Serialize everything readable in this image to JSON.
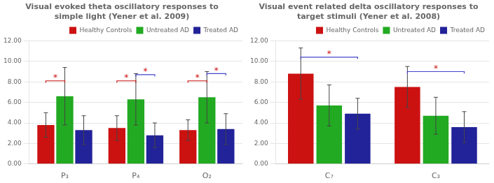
{
  "chart_data": [
    {
      "type": "bar",
      "title": "Visual evoked theta oscillatory responses to\nsimple light (Yener et al. 2009)",
      "categories": [
        "P₃",
        "P₄",
        "O₂"
      ],
      "series": [
        {
          "name": "Healthy Controls",
          "color": "#cc1111",
          "values": [
            3.8,
            3.5,
            3.3
          ],
          "errors": [
            1.2,
            1.2,
            1.0
          ]
        },
        {
          "name": "Untreated AD",
          "color": "#22aa22",
          "values": [
            6.6,
            6.3,
            6.5
          ],
          "errors": [
            2.8,
            2.5,
            2.5
          ]
        },
        {
          "name": "Treated AD",
          "color": "#222299",
          "values": [
            3.3,
            2.8,
            3.4
          ],
          "errors": [
            1.4,
            1.2,
            1.5
          ]
        }
      ],
      "ylim": [
        0,
        12
      ],
      "yticks": [
        {
          "value": 0,
          "label": "0.00"
        },
        {
          "value": 2,
          "label": "2.00"
        },
        {
          "value": 4,
          "label": "4.00"
        },
        {
          "value": 6,
          "label": "6.00"
        },
        {
          "value": 8,
          "label": "8.00"
        },
        {
          "value": 10,
          "label": "10.00"
        },
        {
          "value": 12,
          "label": "12.00"
        }
      ],
      "grid": true,
      "legend": "upper right",
      "annotations": [
        {
          "text": "*",
          "category": "P₃",
          "from": "Healthy Controls",
          "to": "Untreated AD",
          "y": 8.1,
          "color": "#cc1111",
          "text_color": "#cc1111"
        },
        {
          "text": "*",
          "category": "P₄",
          "from": "Healthy Controls",
          "to": "Untreated AD",
          "y": 8.1,
          "color": "#cc1111",
          "text_color": "#cc1111"
        },
        {
          "text": "*",
          "category": "P₄",
          "from": "Untreated AD",
          "to": "Treated AD",
          "y": 8.7,
          "color": "#4444cc",
          "text_color": "#cc1111"
        },
        {
          "text": "*",
          "category": "O₂",
          "from": "Healthy Controls",
          "to": "Untreated AD",
          "y": 8.1,
          "color": "#cc1111",
          "text_color": "#cc1111"
        },
        {
          "text": "*",
          "category": "O₂",
          "from": "Untreated AD",
          "to": "Treated AD",
          "y": 8.8,
          "color": "#4444cc",
          "text_color": "#cc1111"
        }
      ]
    },
    {
      "type": "bar",
      "title": "Visual event related delta oscillatory responses to\ntarget stimuli (Yener et al. 2008)",
      "categories": [
        "C₇",
        "C₃"
      ],
      "series": [
        {
          "name": "Healthy Controls",
          "color": "#cc1111",
          "values": [
            8.8,
            7.5
          ],
          "errors": [
            2.5,
            2.0
          ]
        },
        {
          "name": "Untreated AD",
          "color": "#22aa22",
          "values": [
            5.7,
            4.7
          ],
          "errors": [
            2.0,
            1.8
          ]
        },
        {
          "name": "Treated AD",
          "color": "#222299",
          "values": [
            4.9,
            3.6
          ],
          "errors": [
            1.5,
            1.5
          ]
        }
      ],
      "ylim": [
        0,
        12
      ],
      "yticks": [
        {
          "value": 0,
          "label": "0.00"
        },
        {
          "value": 2,
          "label": "2.00"
        },
        {
          "value": 4,
          "label": "4.00"
        },
        {
          "value": 6,
          "label": "6.00"
        },
        {
          "value": 8,
          "label": "8.00"
        },
        {
          "value": 10,
          "label": "10.00"
        },
        {
          "value": 12,
          "label": "12.00"
        }
      ],
      "grid": true,
      "legend": "upper right",
      "annotations": [
        {
          "text": "*",
          "category": "C₇",
          "from": "Healthy Controls",
          "to": "Treated AD",
          "y": 10.4,
          "color": "#4444cc",
          "text_color": "#cc1111"
        },
        {
          "text": "*",
          "category": "C₃",
          "from": "Healthy Controls",
          "to": "Treated AD",
          "y": 9.0,
          "color": "#4444cc",
          "text_color": "#cc1111"
        }
      ]
    }
  ]
}
